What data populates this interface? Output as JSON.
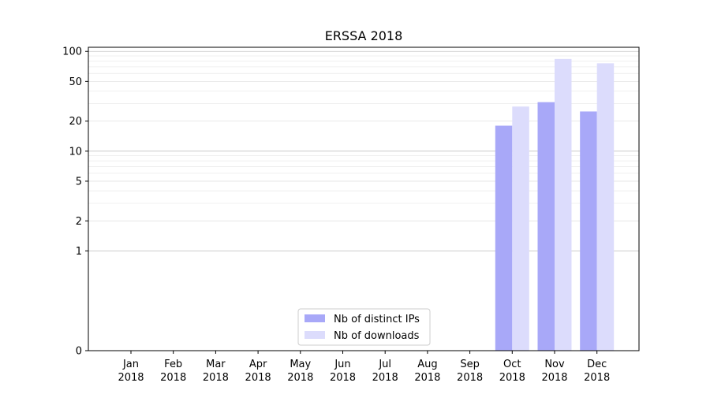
{
  "chart_data": {
    "type": "bar",
    "title": "ERSSA 2018",
    "xlabel": "",
    "ylabel": "",
    "y_scale": "symlog",
    "y_ticks": [
      0,
      1,
      2,
      5,
      10,
      20,
      50,
      100
    ],
    "ylim": [
      0,
      110
    ],
    "grid": true,
    "legend_position": "bottom-center",
    "categories": [
      [
        "Jan",
        "2018"
      ],
      [
        "Feb",
        "2018"
      ],
      [
        "Mar",
        "2018"
      ],
      [
        "Apr",
        "2018"
      ],
      [
        "May",
        "2018"
      ],
      [
        "Jun",
        "2018"
      ],
      [
        "Jul",
        "2018"
      ],
      [
        "Aug",
        "2018"
      ],
      [
        "Sep",
        "2018"
      ],
      [
        "Oct",
        "2018"
      ],
      [
        "Nov",
        "2018"
      ],
      [
        "Dec",
        "2018"
      ]
    ],
    "series": [
      {
        "name": "Nb of distinct IPs",
        "color": "#a8a8f8",
        "values": [
          0,
          0,
          0,
          0,
          0,
          0,
          0,
          0,
          0,
          18,
          31,
          25
        ]
      },
      {
        "name": "Nb of downloads",
        "color": "#dcdcfc",
        "values": [
          0,
          0,
          0,
          0,
          0,
          0,
          0,
          0,
          0,
          28,
          84,
          76
        ]
      }
    ]
  }
}
